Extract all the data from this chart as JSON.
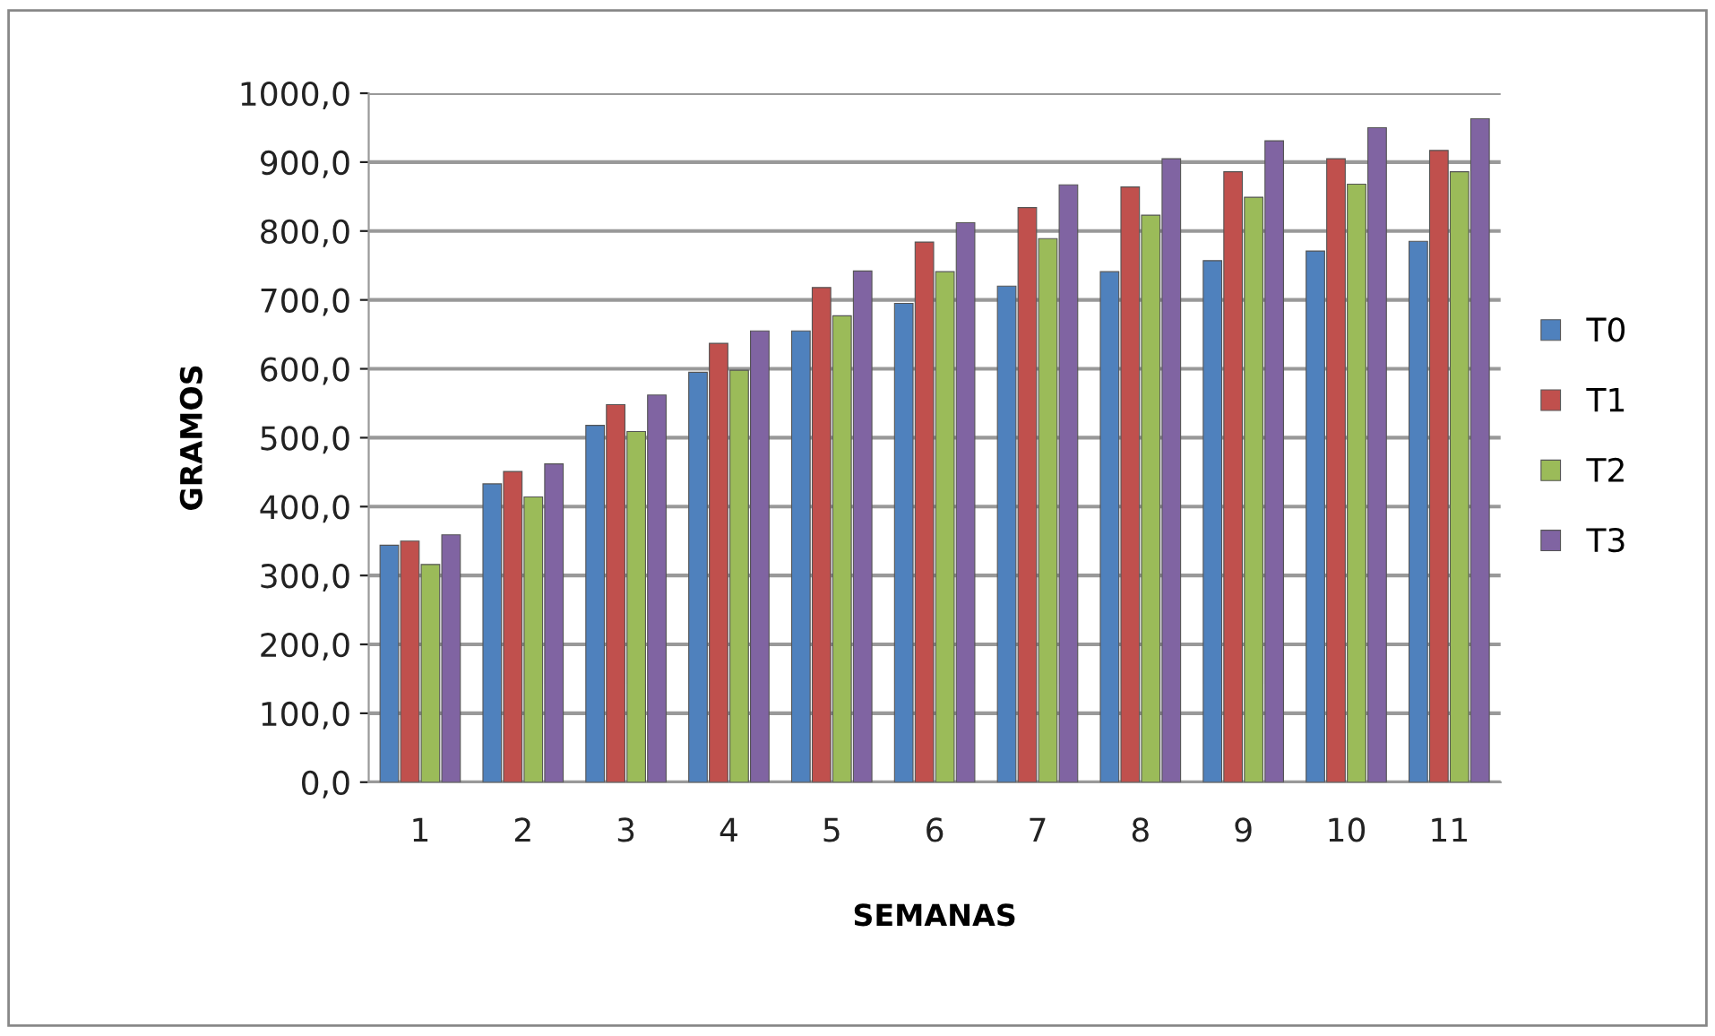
{
  "chart_data": {
    "type": "bar",
    "xlabel": "SEMANAS",
    "ylabel": "GRAMOS",
    "categories": [
      "1",
      "2",
      "3",
      "4",
      "5",
      "6",
      "7",
      "8",
      "9",
      "10",
      "11"
    ],
    "series": [
      {
        "name": "T0",
        "color": "#4f81bd",
        "values": [
          344,
          433,
          518,
          595,
          655,
          695,
          720,
          741,
          757,
          771,
          785
        ]
      },
      {
        "name": "T1",
        "color": "#c0504d",
        "values": [
          350,
          451,
          548,
          637,
          718,
          784,
          834,
          864,
          886,
          905,
          917
        ]
      },
      {
        "name": "T2",
        "color": "#9bbb59",
        "values": [
          316,
          414,
          509,
          598,
          677,
          741,
          789,
          823,
          849,
          868,
          886
        ]
      },
      {
        "name": "T3",
        "color": "#8064a2",
        "values": [
          359,
          462,
          562,
          655,
          742,
          812,
          867,
          905,
          931,
          950,
          963
        ]
      }
    ],
    "ylim": [
      0,
      1000
    ],
    "yticks": [
      {
        "value": 0,
        "label": "0,0"
      },
      {
        "value": 100,
        "label": "100,0"
      },
      {
        "value": 200,
        "label": "200,0"
      },
      {
        "value": 300,
        "label": "300,0"
      },
      {
        "value": 400,
        "label": "400,0"
      },
      {
        "value": 500,
        "label": "500,0"
      },
      {
        "value": 600,
        "label": "600,0"
      },
      {
        "value": 700,
        "label": "700,0"
      },
      {
        "value": 800,
        "label": "800,0"
      },
      {
        "value": 900,
        "label": "900,0"
      },
      {
        "value": 1000,
        "label": "1000,0"
      }
    ],
    "grid": "y",
    "legend": "right"
  }
}
